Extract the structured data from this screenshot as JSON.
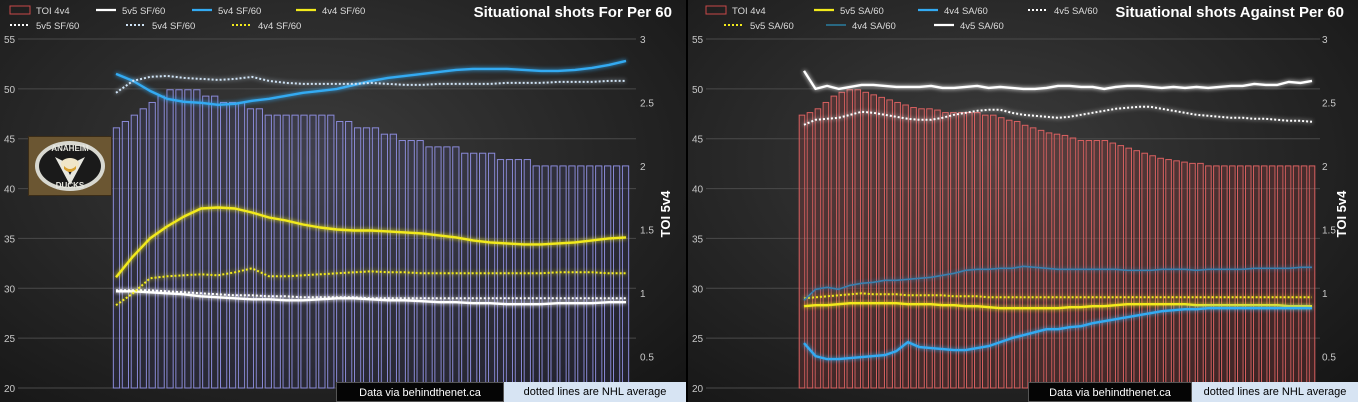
{
  "chart_data": [
    {
      "type": "line",
      "title": "Situational shots For Per 60",
      "y2label": "TOI 5v4",
      "ylim": [
        20,
        55
      ],
      "y2lim": [
        0.25,
        3
      ],
      "yticks": [
        20,
        25,
        30,
        35,
        40,
        45,
        50,
        55
      ],
      "y2ticks": [
        "0.5",
        "1",
        "1.5",
        "2",
        "2.5",
        "3"
      ],
      "legend_position": "top",
      "bar_series": {
        "name": "TOI 4v4",
        "axis": "right",
        "color": "#8a8ad8",
        "values": [
          2.3,
          2.35,
          2.4,
          2.45,
          2.5,
          2.55,
          2.6,
          2.6,
          2.6,
          2.6,
          2.55,
          2.55,
          2.5,
          2.5,
          2.5,
          2.45,
          2.45,
          2.4,
          2.4,
          2.4,
          2.4,
          2.4,
          2.4,
          2.4,
          2.4,
          2.35,
          2.35,
          2.3,
          2.3,
          2.3,
          2.25,
          2.25,
          2.2,
          2.2,
          2.2,
          2.15,
          2.15,
          2.15,
          2.15,
          2.1,
          2.1,
          2.1,
          2.1,
          2.05,
          2.05,
          2.05,
          2.05,
          2.0,
          2.0,
          2.0,
          2.0,
          2.0,
          2.0,
          2.0,
          2.0,
          2.0,
          2.0,
          2.0
        ]
      },
      "legend": [
        {
          "name": "TOI 4v4",
          "style": "box",
          "color": "#c84848"
        },
        {
          "name": "5v5 SF/60",
          "style": "solid",
          "color": "#ffffff"
        },
        {
          "name": "5v4 SF/60",
          "style": "solid",
          "color": "#33aaf2"
        },
        {
          "name": "4v4 SF/60",
          "style": "solid",
          "color": "#f2ea1c"
        },
        {
          "name": "5v5 SF/60",
          "style": "dotted",
          "color": "#ffffff"
        },
        {
          "name": "5v4 SF/60",
          "style": "dotted",
          "color": "#cfe3f5"
        },
        {
          "name": "4v4 SF/60",
          "style": "dotted",
          "color": "#f2ea1c"
        }
      ],
      "series": [
        {
          "name": "5v5 SF/60",
          "style": "solid",
          "color": "#ffffff",
          "values": [
            29.7,
            29.7,
            29.6,
            29.5,
            29.4,
            29.2,
            29.1,
            29.0,
            28.9,
            28.9,
            28.8,
            28.8,
            28.9,
            29.0,
            29.0,
            28.9,
            28.8,
            28.8,
            28.7,
            28.6,
            28.6,
            28.5,
            28.5,
            28.4,
            28.4,
            28.4,
            28.5,
            28.5,
            28.5,
            28.6,
            28.6
          ]
        },
        {
          "name": "5v4 SF/60",
          "style": "solid",
          "color": "#33aaf2",
          "values": [
            51.5,
            50.8,
            49.8,
            49.0,
            48.7,
            48.6,
            48.4,
            48.5,
            48.8,
            49.0,
            49.3,
            49.6,
            49.8,
            50.0,
            50.4,
            50.8,
            51.1,
            51.3,
            51.5,
            51.7,
            51.9,
            52.0,
            52.0,
            52.0,
            51.9,
            51.8,
            51.8,
            51.9,
            52.1,
            52.4,
            52.8
          ]
        },
        {
          "name": "4v4 SF/60",
          "style": "solid",
          "color": "#f2ea1c",
          "values": [
            31.1,
            33.2,
            35.0,
            36.2,
            37.2,
            38.0,
            38.1,
            38.0,
            37.6,
            37.1,
            36.8,
            36.4,
            36.1,
            35.9,
            35.8,
            35.8,
            35.7,
            35.6,
            35.5,
            35.3,
            35.1,
            34.8,
            34.6,
            34.5,
            34.4,
            34.4,
            34.5,
            34.6,
            34.8,
            35.0,
            35.1
          ]
        },
        {
          "name": "5v5 SF/60",
          "style": "dotted",
          "color": "#ffffff",
          "values": [
            29.8,
            29.8,
            29.8,
            29.7,
            29.6,
            29.5,
            29.4,
            29.3,
            29.3,
            29.2,
            29.2,
            29.1,
            29.1,
            29.1,
            29.1,
            29.0,
            29.0,
            29.0,
            29.0,
            29.0,
            29.0,
            29.0,
            29.0,
            29.0,
            29.0,
            29.0,
            29.0,
            29.0,
            29.0,
            29.0,
            29.0
          ]
        },
        {
          "name": "5v4 SF/60",
          "style": "dotted",
          "color": "#cfe3f5",
          "values": [
            49.6,
            50.8,
            51.2,
            51.3,
            51.1,
            51.0,
            50.9,
            51.0,
            51.2,
            50.8,
            50.6,
            50.5,
            50.5,
            50.5,
            50.5,
            50.6,
            50.5,
            50.4,
            50.4,
            50.5,
            50.5,
            50.5,
            50.5,
            50.6,
            50.6,
            50.6,
            50.7,
            50.7,
            50.7,
            50.8,
            50.8
          ]
        },
        {
          "name": "4v4 SF/60",
          "style": "dotted",
          "color": "#f2ea1c",
          "values": [
            28.3,
            29.5,
            31.0,
            31.2,
            31.3,
            31.4,
            31.3,
            31.6,
            32.0,
            31.2,
            31.2,
            31.3,
            31.4,
            31.5,
            31.6,
            31.7,
            31.6,
            31.6,
            31.5,
            31.5,
            31.5,
            31.5,
            31.5,
            31.5,
            31.5,
            31.5,
            31.6,
            31.6,
            31.6,
            31.5,
            31.5
          ]
        }
      ]
    },
    {
      "type": "line",
      "title": "Situational shots Against Per 60",
      "y2label": "TOI 5v4",
      "ylim": [
        20,
        55
      ],
      "y2lim": [
        0.25,
        3
      ],
      "yticks": [
        20,
        25,
        30,
        35,
        40,
        45,
        50,
        55
      ],
      "y2ticks": [
        "0.5",
        "1",
        "1.5",
        "2",
        "2.5",
        "3"
      ],
      "legend_position": "top",
      "bar_series": {
        "name": "TOI 4v4",
        "axis": "right",
        "color": "#d86060",
        "values": [
          2.4,
          2.42,
          2.45,
          2.5,
          2.55,
          2.58,
          2.6,
          2.6,
          2.58,
          2.56,
          2.54,
          2.52,
          2.5,
          2.48,
          2.46,
          2.45,
          2.45,
          2.44,
          2.42,
          2.42,
          2.42,
          2.42,
          2.42,
          2.4,
          2.4,
          2.38,
          2.36,
          2.35,
          2.32,
          2.3,
          2.28,
          2.26,
          2.25,
          2.24,
          2.22,
          2.2,
          2.2,
          2.2,
          2.2,
          2.18,
          2.16,
          2.14,
          2.12,
          2.1,
          2.08,
          2.06,
          2.05,
          2.04,
          2.03,
          2.02,
          2.02,
          2.0,
          2.0,
          2.0,
          2.0,
          2.0,
          2.0,
          2.0,
          2.0,
          2.0,
          2.0,
          2.0,
          2.0,
          2.0,
          2.0
        ]
      },
      "legend": [
        {
          "name": "TOI 4v4",
          "style": "box",
          "color": "#c84848"
        },
        {
          "name": "5v5 SA/60",
          "style": "solid",
          "color": "#f2ea1c"
        },
        {
          "name": "4v4 SA/60",
          "style": "solid",
          "color": "#33aaf2"
        },
        {
          "name": "4v5 SA/60",
          "style": "dotted",
          "color": "#ffffff"
        },
        {
          "name": "5v5 SA/60",
          "style": "dotted",
          "color": "#f2ea1c"
        },
        {
          "name": "4v4 SA/60",
          "style": "thin",
          "color": "#2a8fb8"
        },
        {
          "name": "4v5 SA/60",
          "style": "solid",
          "color": "#ffffff"
        }
      ],
      "series": [
        {
          "name": "4v5 SA/60",
          "style": "solid",
          "color": "#ffffff",
          "values": [
            51.8,
            50.0,
            50.3,
            50.0,
            50.2,
            50.4,
            50.4,
            50.3,
            50.2,
            50.2,
            50.2,
            50.3,
            50.1,
            50.1,
            50.2,
            50.3,
            50.1,
            50.2,
            50.1,
            50.0,
            50.0,
            50.1,
            50.3,
            50.3,
            50.2,
            50.2,
            50.0,
            50.2,
            50.3,
            50.3,
            50.2,
            50.1,
            50.2,
            50.1,
            50.2,
            50.1,
            50.2,
            50.3,
            50.3,
            50.5,
            50.4,
            50.4,
            50.7,
            50.6,
            50.8
          ]
        },
        {
          "name": "5v5 SA/60",
          "style": "solid",
          "color": "#f2ea1c",
          "values": [
            28.2,
            28.3,
            28.3,
            28.4,
            28.5,
            28.5,
            28.5,
            28.5,
            28.5,
            28.4,
            28.4,
            28.4,
            28.3,
            28.3,
            28.2,
            28.2,
            28.1,
            28.0,
            28.0,
            28.0,
            28.0,
            28.0,
            28.0,
            28.1,
            28.1,
            28.2,
            28.2,
            28.3,
            28.4,
            28.4,
            28.4,
            28.4,
            28.4,
            28.4,
            28.3,
            28.3,
            28.3,
            28.3,
            28.3,
            28.3,
            28.3,
            28.3,
            28.2,
            28.2,
            28.2
          ]
        },
        {
          "name": "4v4 SA/60",
          "style": "solid",
          "color": "#33aaf2",
          "values": [
            24.5,
            23.2,
            22.9,
            22.9,
            23.0,
            23.1,
            23.2,
            23.3,
            23.7,
            24.6,
            24.1,
            24.0,
            23.9,
            23.8,
            23.8,
            24.0,
            24.2,
            24.6,
            25.0,
            25.3,
            25.6,
            25.9,
            25.9,
            26.1,
            26.2,
            26.5,
            26.7,
            26.9,
            27.1,
            27.3,
            27.5,
            27.7,
            27.8,
            27.9,
            27.9,
            28.0,
            28.0,
            28.0,
            28.0,
            28.0,
            28.0,
            28.0,
            28.0,
            28.0,
            28.0
          ]
        },
        {
          "name": "4v5 SA/60",
          "style": "dotted",
          "color": "#ffffff",
          "values": [
            46.4,
            46.9,
            47.0,
            47.1,
            47.4,
            47.7,
            47.6,
            47.4,
            47.2,
            47.0,
            46.9,
            46.9,
            47.1,
            47.4,
            47.6,
            47.8,
            47.9,
            47.9,
            47.6,
            47.4,
            47.3,
            47.2,
            47.1,
            47.2,
            47.4,
            47.6,
            47.8,
            48.0,
            48.1,
            48.2,
            48.2,
            48.0,
            47.8,
            47.6,
            47.4,
            47.3,
            47.2,
            47.1,
            47.1,
            47.0,
            47.0,
            46.9,
            46.8,
            46.8,
            46.7
          ]
        },
        {
          "name": "5v5 SA/60",
          "style": "dotted",
          "color": "#f2ea1c",
          "values": [
            29.0,
            29.1,
            29.2,
            29.3,
            29.4,
            29.5,
            29.4,
            29.4,
            29.4,
            29.3,
            29.3,
            29.3,
            29.3,
            29.2,
            29.2,
            29.2,
            29.1,
            29.1,
            29.1,
            29.1,
            29.1,
            29.1,
            29.1,
            29.1,
            29.1,
            29.1,
            29.1,
            29.1,
            29.1,
            29.1,
            29.1,
            29.1,
            29.1,
            29.1,
            29.1,
            29.1,
            29.1,
            29.1,
            29.1,
            29.1,
            29.1,
            29.1,
            29.1,
            29.1,
            29.1
          ]
        },
        {
          "name": "4v4 SA/60",
          "style": "thin",
          "color": "#3a7fae",
          "values": [
            28.8,
            29.9,
            30.1,
            29.9,
            30.3,
            30.5,
            30.6,
            30.8,
            30.8,
            30.9,
            31.0,
            31.1,
            31.3,
            31.5,
            31.8,
            31.9,
            31.9,
            32.0,
            32.0,
            32.2,
            32.1,
            32.0,
            31.9,
            31.9,
            31.9,
            31.9,
            31.9,
            31.9,
            31.8,
            31.8,
            31.8,
            31.9,
            31.9,
            31.9,
            31.8,
            31.9,
            31.9,
            31.9,
            31.9,
            32.0,
            32.0,
            32.0,
            32.0,
            32.1,
            32.1
          ]
        }
      ]
    }
  ],
  "footer": {
    "left_source": "Data via behindthenet.ca",
    "left_note": "dotted lines are NHL average",
    "right_source": "Data via behindthenet.ca",
    "right_note": "dotted lines are NHL average"
  },
  "logo": {
    "text_top": "ANAHEIM",
    "text_bottom": "DUCKS"
  },
  "colors": {
    "background": "#2a2a2a",
    "gridline": "#555555",
    "axis_text": "#c8c8c8"
  }
}
